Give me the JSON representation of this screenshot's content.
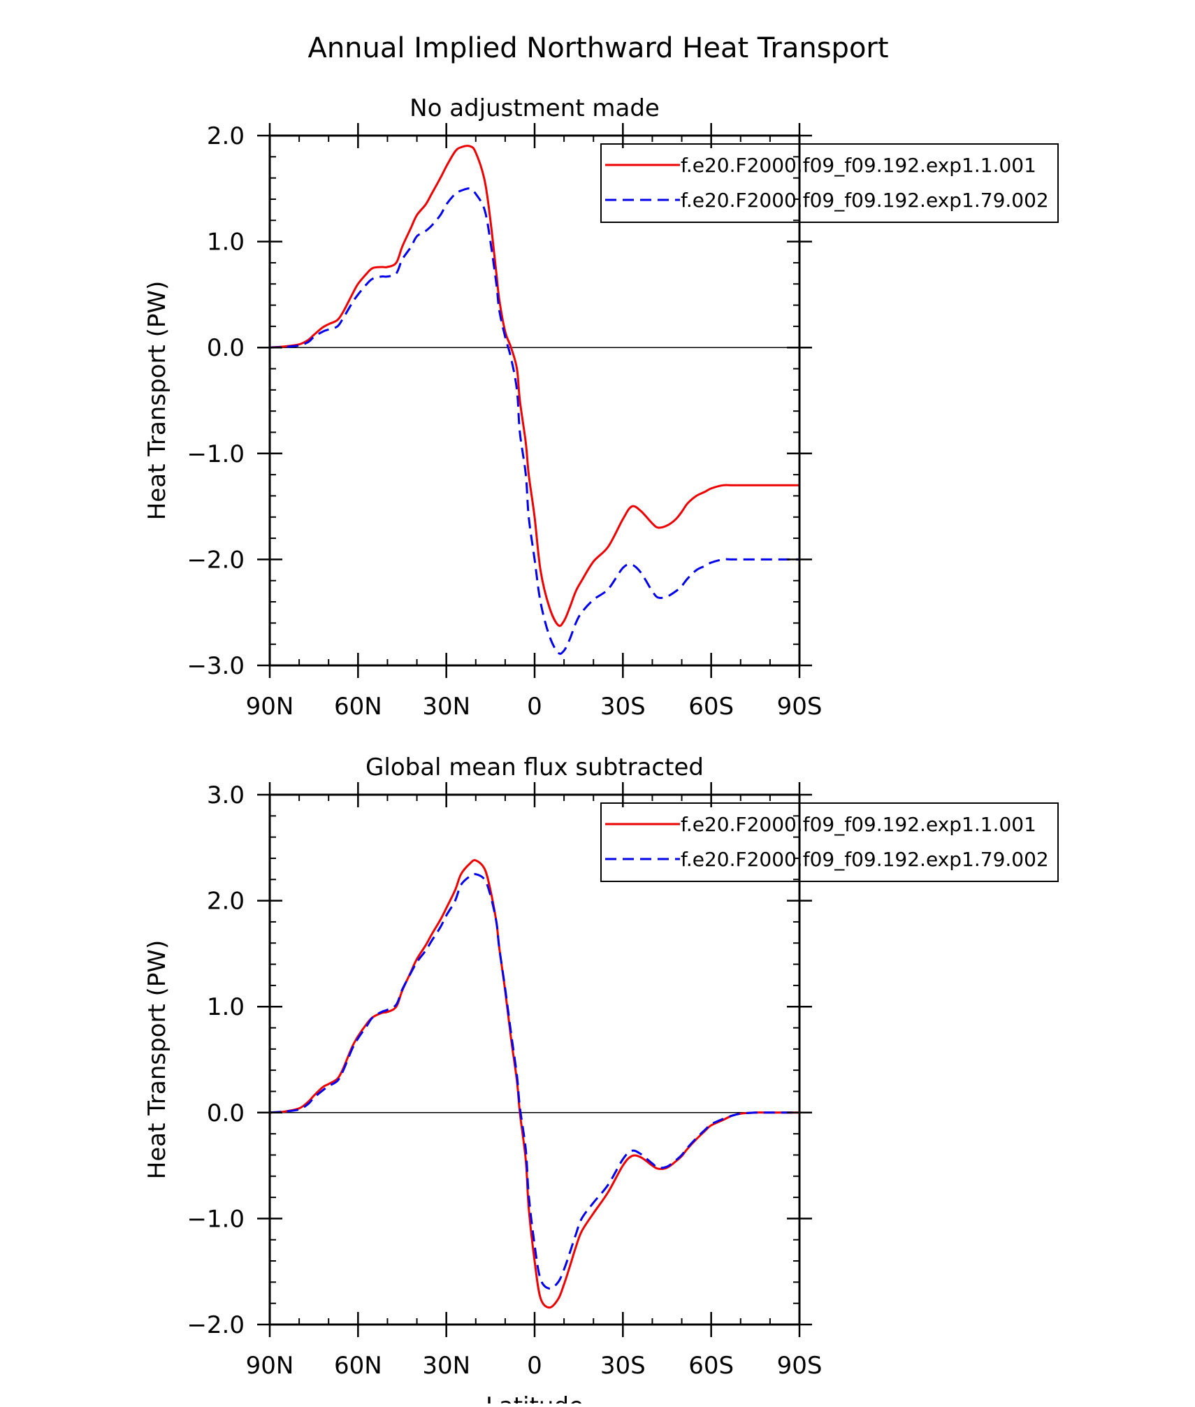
{
  "figure": {
    "title": "Annual Implied Northward Heat Transport"
  },
  "chart_data": [
    {
      "type": "line",
      "title": "No adjustment made",
      "xlabel": "",
      "ylabel": "Heat Transport (PW)",
      "xlim": [
        90,
        -90
      ],
      "ylim": [
        -3.0,
        2.0
      ],
      "x_ticks": [
        90,
        60,
        30,
        0,
        -30,
        -60,
        -90
      ],
      "x_tick_labels": [
        "90N",
        "60N",
        "30N",
        "0",
        "30S",
        "60S",
        "90S"
      ],
      "y_ticks": [
        2.0,
        1.0,
        0.0,
        -1.0,
        -2.0,
        -3.0
      ],
      "y_tick_labels": [
        "2.0",
        "1.0",
        "0.0",
        "−1.0",
        "−2.0",
        "−3.0"
      ],
      "zero_line": true,
      "legend": "top-right",
      "series": [
        {
          "name": "f.e20.F2000.f09_f09.192.exp1.1.001",
          "color": "#ee0000",
          "dash": "solid",
          "x": [
            90,
            85,
            80,
            77,
            75,
            72,
            70,
            67,
            65,
            62,
            60,
            57,
            55,
            52,
            50,
            47,
            45,
            42,
            40,
            37,
            35,
            32,
            30,
            27,
            25,
            22,
            20,
            17,
            15,
            13,
            12,
            10,
            8,
            6,
            5,
            3,
            2,
            0,
            -2,
            -5,
            -8,
            -10,
            -12,
            -14,
            -16,
            -20,
            -25,
            -30,
            -33,
            -36,
            -40,
            -42,
            -45,
            -48,
            -50,
            -52,
            -55,
            -58,
            -60,
            -64,
            -67,
            -70,
            -75,
            -80,
            -85,
            -90
          ],
          "y": [
            0.0,
            0.01,
            0.03,
            0.07,
            0.12,
            0.19,
            0.22,
            0.26,
            0.34,
            0.5,
            0.6,
            0.7,
            0.75,
            0.76,
            0.76,
            0.8,
            0.95,
            1.13,
            1.25,
            1.35,
            1.45,
            1.6,
            1.71,
            1.85,
            1.89,
            1.9,
            1.84,
            1.58,
            1.2,
            0.7,
            0.45,
            0.15,
            0.0,
            -0.2,
            -0.5,
            -0.9,
            -1.2,
            -1.6,
            -2.1,
            -2.45,
            -2.62,
            -2.58,
            -2.45,
            -2.3,
            -2.2,
            -2.02,
            -1.88,
            -1.62,
            -1.5,
            -1.54,
            -1.66,
            -1.7,
            -1.68,
            -1.62,
            -1.55,
            -1.47,
            -1.4,
            -1.36,
            -1.33,
            -1.3,
            -1.3,
            -1.3,
            -1.3,
            -1.3,
            -1.3,
            -1.3
          ]
        },
        {
          "name": "f.e20.F2000.f09_f09.192.exp1.79.002",
          "color": "#0000ee",
          "dash": "dashed",
          "x": [
            90,
            85,
            80,
            77,
            75,
            72,
            70,
            67,
            65,
            62,
            60,
            57,
            55,
            52,
            50,
            47,
            45,
            42,
            40,
            37,
            35,
            32,
            30,
            27,
            25,
            22,
            20,
            17,
            15,
            13,
            12,
            10,
            8,
            6,
            5,
            3,
            2,
            0,
            -2,
            -5,
            -8,
            -10,
            -12,
            -14,
            -16,
            -20,
            -25,
            -30,
            -33,
            -36,
            -40,
            -42,
            -45,
            -48,
            -50,
            -52,
            -55,
            -58,
            -60,
            -64,
            -67,
            -70,
            -75,
            -80,
            -85,
            -90
          ],
          "y": [
            0.0,
            0.005,
            0.02,
            0.05,
            0.1,
            0.15,
            0.17,
            0.2,
            0.28,
            0.42,
            0.5,
            0.6,
            0.65,
            0.67,
            0.67,
            0.7,
            0.83,
            0.95,
            1.05,
            1.1,
            1.15,
            1.25,
            1.35,
            1.45,
            1.48,
            1.5,
            1.45,
            1.3,
            1.0,
            0.6,
            0.35,
            0.1,
            -0.1,
            -0.4,
            -0.8,
            -1.2,
            -1.6,
            -2.0,
            -2.4,
            -2.72,
            -2.88,
            -2.86,
            -2.75,
            -2.6,
            -2.5,
            -2.38,
            -2.28,
            -2.08,
            -2.05,
            -2.12,
            -2.3,
            -2.36,
            -2.35,
            -2.3,
            -2.25,
            -2.18,
            -2.1,
            -2.06,
            -2.03,
            -2.0,
            -2.0,
            -2.0,
            -2.0,
            -2.0,
            -2.0,
            -2.0
          ]
        }
      ]
    },
    {
      "type": "line",
      "title": "Global mean flux subtracted",
      "xlabel": "Latitude",
      "ylabel": "Heat Transport (PW)",
      "xlim": [
        90,
        -90
      ],
      "ylim": [
        -2.0,
        3.0
      ],
      "x_ticks": [
        90,
        60,
        30,
        0,
        -30,
        -60,
        -90
      ],
      "x_tick_labels": [
        "90N",
        "60N",
        "30N",
        "0",
        "30S",
        "60S",
        "90S"
      ],
      "y_ticks": [
        3.0,
        2.0,
        1.0,
        0.0,
        -1.0,
        -2.0
      ],
      "y_tick_labels": [
        "3.0",
        "2.0",
        "1.0",
        "0.0",
        "−1.0",
        "−2.0"
      ],
      "zero_line": true,
      "legend": "top-right",
      "series": [
        {
          "name": "f.e20.F2000.f09_f09.192.exp1.1.001",
          "color": "#ee0000",
          "dash": "solid",
          "x": [
            90,
            85,
            80,
            77,
            75,
            72,
            70,
            67,
            65,
            62,
            60,
            57,
            55,
            52,
            50,
            47,
            45,
            42,
            40,
            37,
            35,
            32,
            30,
            27,
            25,
            22,
            20,
            17,
            15,
            13,
            12,
            10,
            8,
            6,
            5,
            3,
            2,
            0,
            -2,
            -5,
            -8,
            -10,
            -12,
            -14,
            -16,
            -20,
            -25,
            -30,
            -33,
            -36,
            -40,
            -42,
            -45,
            -48,
            -50,
            -52,
            -55,
            -58,
            -60,
            -64,
            -67,
            -70,
            -75,
            -80,
            -85,
            -90
          ],
          "y": [
            0.0,
            0.01,
            0.04,
            0.1,
            0.16,
            0.24,
            0.27,
            0.32,
            0.42,
            0.62,
            0.72,
            0.84,
            0.9,
            0.94,
            0.95,
            1.0,
            1.15,
            1.33,
            1.45,
            1.58,
            1.68,
            1.82,
            1.93,
            2.1,
            2.25,
            2.35,
            2.38,
            2.3,
            2.1,
            1.8,
            1.55,
            1.15,
            0.7,
            0.3,
            0.0,
            -0.45,
            -0.9,
            -1.4,
            -1.75,
            -1.84,
            -1.76,
            -1.62,
            -1.45,
            -1.27,
            -1.12,
            -0.95,
            -0.75,
            -0.5,
            -0.41,
            -0.42,
            -0.5,
            -0.53,
            -0.52,
            -0.46,
            -0.41,
            -0.34,
            -0.25,
            -0.17,
            -0.12,
            -0.07,
            -0.03,
            -0.01,
            0.0,
            0.0,
            0.0,
            0.0
          ]
        },
        {
          "name": "f.e20.F2000.f09_f09.192.exp1.79.002",
          "color": "#0000ee",
          "dash": "dashed",
          "x": [
            90,
            85,
            80,
            77,
            75,
            72,
            70,
            67,
            65,
            62,
            60,
            57,
            55,
            52,
            50,
            47,
            45,
            42,
            40,
            37,
            35,
            32,
            30,
            27,
            25,
            22,
            20,
            17,
            15,
            13,
            12,
            10,
            8,
            6,
            5,
            3,
            2,
            0,
            -2,
            -5,
            -8,
            -10,
            -12,
            -14,
            -16,
            -20,
            -25,
            -30,
            -33,
            -36,
            -40,
            -42,
            -45,
            -48,
            -50,
            -52,
            -55,
            -58,
            -60,
            -64,
            -67,
            -70,
            -75,
            -80,
            -85,
            -90
          ],
          "y": [
            0.0,
            0.01,
            0.03,
            0.08,
            0.14,
            0.21,
            0.25,
            0.3,
            0.4,
            0.6,
            0.7,
            0.82,
            0.9,
            0.95,
            0.97,
            1.02,
            1.16,
            1.32,
            1.42,
            1.53,
            1.62,
            1.75,
            1.86,
            2.0,
            2.15,
            2.23,
            2.25,
            2.2,
            2.05,
            1.8,
            1.55,
            1.17,
            0.75,
            0.35,
            0.05,
            -0.35,
            -0.78,
            -1.25,
            -1.57,
            -1.66,
            -1.6,
            -1.48,
            -1.32,
            -1.15,
            -1.0,
            -0.85,
            -0.68,
            -0.44,
            -0.36,
            -0.39,
            -0.48,
            -0.52,
            -0.51,
            -0.45,
            -0.4,
            -0.33,
            -0.24,
            -0.16,
            -0.11,
            -0.06,
            -0.03,
            -0.01,
            0.0,
            0.0,
            0.0,
            0.0
          ]
        }
      ]
    }
  ]
}
